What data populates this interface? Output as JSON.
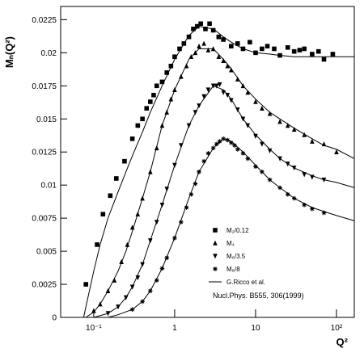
{
  "chart_data": {
    "type": "scatter",
    "y_label": "Mₙ(Q²)",
    "x_label": "Q²",
    "annotation": "Nucl.Phys. B555, 306(1999)",
    "xscale": "log",
    "xlim": [
      0.039,
      166
    ],
    "ylim": [
      0,
      0.0235
    ],
    "xticks": [
      {
        "value": 0.1,
        "label": "10⁻¹"
      },
      1,
      10,
      {
        "value": 100,
        "label": "10²"
      }
    ],
    "yticks": [
      0,
      0.0025,
      0.005,
      0.0075,
      0.01,
      0.0125,
      0.015,
      0.0175,
      0.02,
      0.0225
    ],
    "legend": "lower-right",
    "series": [
      {
        "name": "M₂/0.12",
        "color": "#000000",
        "marker": "square",
        "x": [
          0.08,
          0.11,
          0.13,
          0.16,
          0.19,
          0.24,
          0.3,
          0.35,
          0.4,
          0.45,
          0.5,
          0.55,
          0.6,
          0.7,
          0.8,
          0.9,
          1,
          1.15,
          1.3,
          1.5,
          1.7,
          1.9,
          2.1,
          2.4,
          2.7,
          3,
          3.5,
          4,
          5,
          6,
          7,
          8.5,
          10,
          12,
          14,
          17,
          20,
          25,
          30,
          35,
          40,
          50,
          60,
          70,
          90
        ],
        "values": [
          0.0025,
          0.0055,
          0.0078,
          0.0092,
          0.0105,
          0.0118,
          0.0135,
          0.0145,
          0.015,
          0.0158,
          0.0163,
          0.0168,
          0.0175,
          0.0178,
          0.0185,
          0.019,
          0.0197,
          0.0203,
          0.0207,
          0.0212,
          0.0218,
          0.022,
          0.0222,
          0.0218,
          0.0222,
          0.0217,
          0.0212,
          0.021,
          0.0205,
          0.0207,
          0.0203,
          0.0208,
          0.02,
          0.0203,
          0.0205,
          0.0203,
          0.0198,
          0.0204,
          0.0201,
          0.0202,
          0.0203,
          0.0199,
          0.0201,
          0.0195,
          0.0199
        ]
      },
      {
        "name": "M₄",
        "color": "#000000",
        "marker": "triangle-up",
        "x": [
          0.1,
          0.12,
          0.15,
          0.18,
          0.22,
          0.26,
          0.3,
          0.35,
          0.4,
          0.5,
          0.6,
          0.7,
          0.8,
          0.9,
          1,
          1.2,
          1.4,
          1.6,
          1.8,
          2,
          2.3,
          2.6,
          3,
          3.5,
          4,
          4.5,
          5,
          6,
          7,
          8,
          10,
          12,
          15,
          20,
          25,
          30,
          40,
          50,
          70,
          100
        ],
        "values": [
          0.0005,
          0.001,
          0.002,
          0.0028,
          0.0042,
          0.0055,
          0.0068,
          0.0078,
          0.009,
          0.011,
          0.0128,
          0.0145,
          0.0155,
          0.0165,
          0.0172,
          0.0182,
          0.019,
          0.0197,
          0.02,
          0.0205,
          0.0207,
          0.0202,
          0.0203,
          0.0197,
          0.0194,
          0.019,
          0.0187,
          0.018,
          0.0175,
          0.017,
          0.0163,
          0.0158,
          0.0154,
          0.0148,
          0.0145,
          0.0142,
          0.0138,
          0.0133,
          0.0131,
          0.0125
        ]
      },
      {
        "name": "M₆/3.5",
        "color": "#000000",
        "marker": "triangle-down",
        "x": [
          0.15,
          0.2,
          0.25,
          0.3,
          0.35,
          0.4,
          0.5,
          0.6,
          0.7,
          0.8,
          1,
          1.2,
          1.5,
          1.8,
          2,
          2.3,
          2.6,
          3,
          3.3,
          3.6,
          4,
          4.5,
          5,
          6,
          7,
          8,
          10,
          12,
          15,
          20,
          25,
          30,
          40,
          50,
          70
        ],
        "values": [
          0.0003,
          0.0008,
          0.0015,
          0.0023,
          0.003,
          0.004,
          0.0058,
          0.0072,
          0.0085,
          0.0097,
          0.0115,
          0.013,
          0.0145,
          0.0155,
          0.016,
          0.0167,
          0.0172,
          0.0175,
          0.0175,
          0.0176,
          0.017,
          0.0168,
          0.0164,
          0.0157,
          0.015,
          0.0145,
          0.0137,
          0.0131,
          0.0126,
          0.012,
          0.0116,
          0.0113,
          0.0108,
          0.0106,
          0.0104
        ]
      },
      {
        "name": "M₈/8",
        "color": "#000000",
        "marker": "star",
        "x": [
          0.3,
          0.4,
          0.5,
          0.6,
          0.7,
          0.8,
          1,
          1.2,
          1.4,
          1.6,
          1.8,
          2,
          2.3,
          2.6,
          3,
          3.3,
          3.6,
          4,
          4.5,
          5,
          5.5,
          6,
          7,
          8,
          10,
          12,
          15,
          20,
          25,
          30,
          40,
          50,
          70
        ],
        "values": [
          0.0006,
          0.0012,
          0.002,
          0.0028,
          0.0037,
          0.0045,
          0.006,
          0.0072,
          0.0083,
          0.0093,
          0.0101,
          0.011,
          0.0118,
          0.0124,
          0.0128,
          0.0131,
          0.0133,
          0.0135,
          0.0134,
          0.0132,
          0.013,
          0.0127,
          0.0124,
          0.012,
          0.0114,
          0.011,
          0.0104,
          0.0098,
          0.0093,
          0.009,
          0.0085,
          0.0082,
          0.0079
        ]
      },
      {
        "name": "G.Ricco et al.",
        "color": "#000000",
        "marker": "line",
        "x": [
          0.075,
          0.08,
          0.1,
          0.12,
          0.15,
          0.2,
          0.25,
          0.3,
          0.4,
          0.5,
          0.7,
          1,
          1.5,
          2,
          3,
          4,
          5,
          7,
          10,
          15,
          20,
          30,
          50,
          70,
          100,
          166,
          null,
          0.08,
          0.1,
          0.12,
          0.15,
          0.2,
          0.25,
          0.3,
          0.4,
          0.5,
          0.7,
          1,
          1.5,
          2,
          3,
          4,
          5,
          7,
          10,
          15,
          20,
          30,
          50,
          70,
          100,
          166,
          null,
          0.1,
          0.15,
          0.2,
          0.25,
          0.3,
          0.4,
          0.5,
          0.7,
          1,
          1.5,
          2,
          3,
          4,
          5,
          7,
          10,
          15,
          20,
          30,
          50,
          70,
          100,
          166,
          null,
          0.15,
          0.2,
          0.3,
          0.4,
          0.5,
          0.7,
          1,
          1.5,
          2,
          3,
          4,
          5,
          7,
          10,
          15,
          20,
          30,
          50,
          70,
          100,
          166
        ],
        "values": [
          0,
          0.0008,
          0.0035,
          0.0055,
          0.0075,
          0.0095,
          0.011,
          0.0122,
          0.014,
          0.0155,
          0.0175,
          0.0195,
          0.0213,
          0.022,
          0.0218,
          0.0212,
          0.0208,
          0.0203,
          0.02,
          0.0199,
          0.0198,
          0.0197,
          0.0197,
          0.0197,
          0.0197,
          0.0197,
          null,
          0,
          0.0004,
          0.001,
          0.002,
          0.0035,
          0.005,
          0.0065,
          0.009,
          0.011,
          0.0145,
          0.0172,
          0.0195,
          0.0203,
          0.0203,
          0.0195,
          0.0188,
          0.0175,
          0.0165,
          0.0155,
          0.015,
          0.0143,
          0.0135,
          0.013,
          0.0127,
          0.012,
          null,
          0,
          0.0003,
          0.0008,
          0.0015,
          0.0023,
          0.004,
          0.0058,
          0.0085,
          0.0115,
          0.0145,
          0.016,
          0.0175,
          0.0172,
          0.0165,
          0.015,
          0.0138,
          0.0127,
          0.012,
          0.0113,
          0.0107,
          0.0104,
          0.0102,
          0.0098,
          null,
          0,
          0.0002,
          0.0006,
          0.0012,
          0.002,
          0.0037,
          0.006,
          0.009,
          0.011,
          0.0128,
          0.0135,
          0.0133,
          0.0125,
          0.0115,
          0.0104,
          0.0098,
          0.009,
          0.0083,
          0.008,
          0.0077,
          0.0073
        ]
      }
    ]
  }
}
